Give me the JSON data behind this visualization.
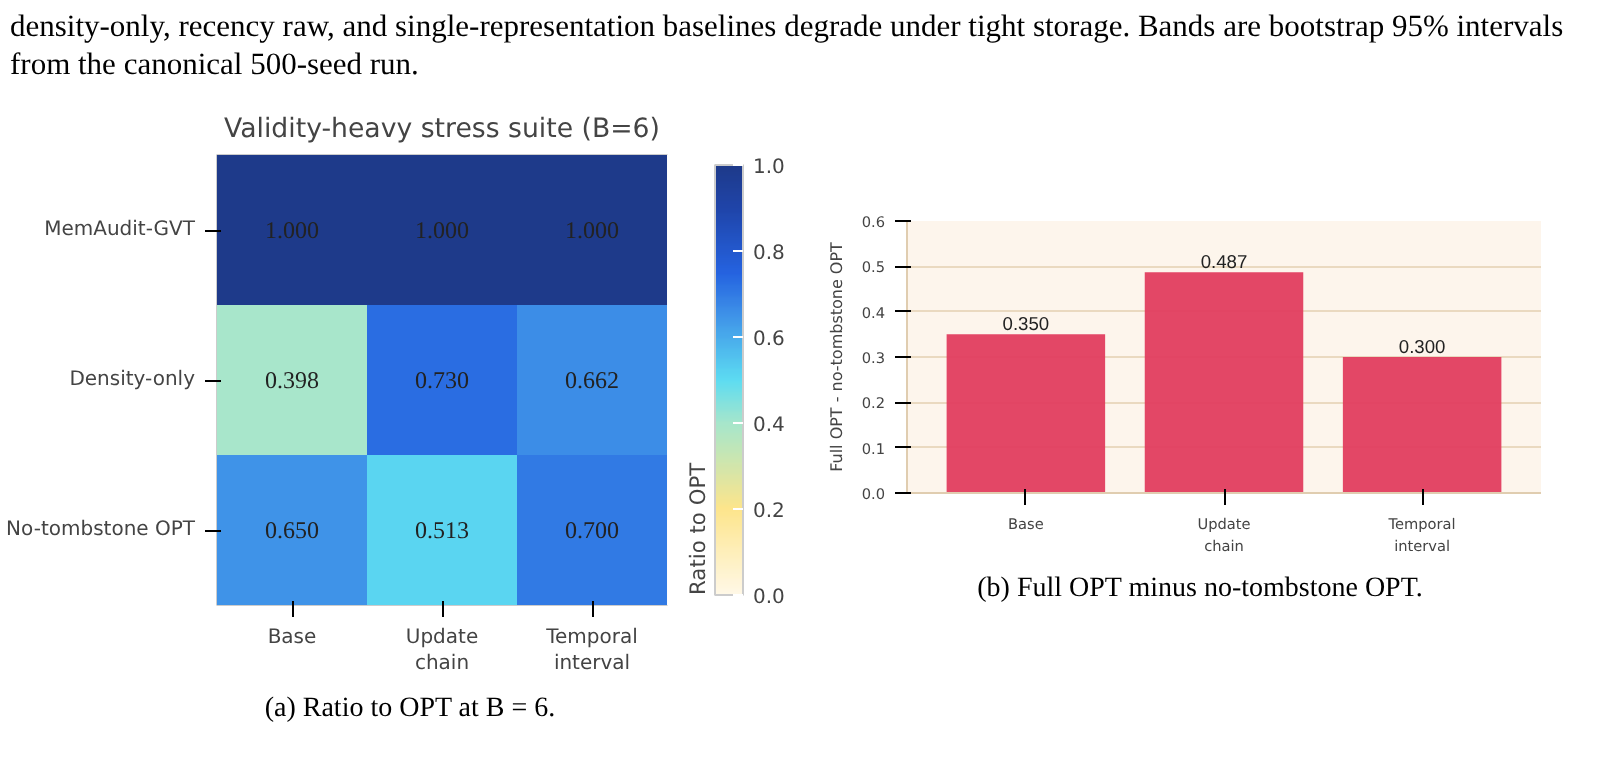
{
  "chart_data": [
    {
      "type": "heatmap",
      "title": "Validity-heavy stress suite (B=6)",
      "clabel": "Ratio to OPT",
      "categories": [
        "Base",
        "Update\nchain",
        "Temporal\ninterval"
      ],
      "y_categories": [
        "MemAudit-GVT",
        "Density-only",
        "No-tombstone OPT"
      ],
      "cells": [
        [
          1.0,
          1.0,
          1.0
        ],
        [
          0.398,
          0.73,
          0.662
        ],
        [
          0.65,
          0.513,
          0.7
        ]
      ],
      "cell_labels": [
        [
          "1.000",
          "1.000",
          "1.000"
        ],
        [
          "0.398",
          "0.730",
          "0.662"
        ],
        [
          "0.650",
          "0.513",
          "0.700"
        ]
      ],
      "clim": [
        0,
        1
      ],
      "cticks": [
        {
          "value": 0,
          "label": "0.0"
        },
        0.2,
        0.4,
        0.6,
        0.8,
        {
          "value": 1,
          "label": "1.0"
        }
      ],
      "annotations": [
        "density-only, recency raw, and single-representation baselines degrade under tight storage. Bands are bootstrap 95% intervals from the canonical 500-seed run.",
        "(a) Ratio to OPT at B = 6."
      ]
    },
    {
      "type": "bar",
      "ylabel": "Full OPT - no-tombstone OPT",
      "categories": [
        "Base",
        "Update\nchain",
        "Temporal\ninterval"
      ],
      "values": [
        0.35,
        0.487,
        0.3
      ],
      "color": "#e23d5f",
      "value_labels": [
        "0.350",
        "0.487",
        "0.300"
      ],
      "ylim": [
        0,
        0.6
      ],
      "yticks": [
        {
          "value": 0,
          "label": "0.0"
        },
        0.1,
        0.2,
        0.3,
        0.4,
        0.5,
        0.6
      ],
      "grid": "y",
      "annotations": [
        "(b) Full OPT minus no-tombstone OPT."
      ]
    }
  ]
}
